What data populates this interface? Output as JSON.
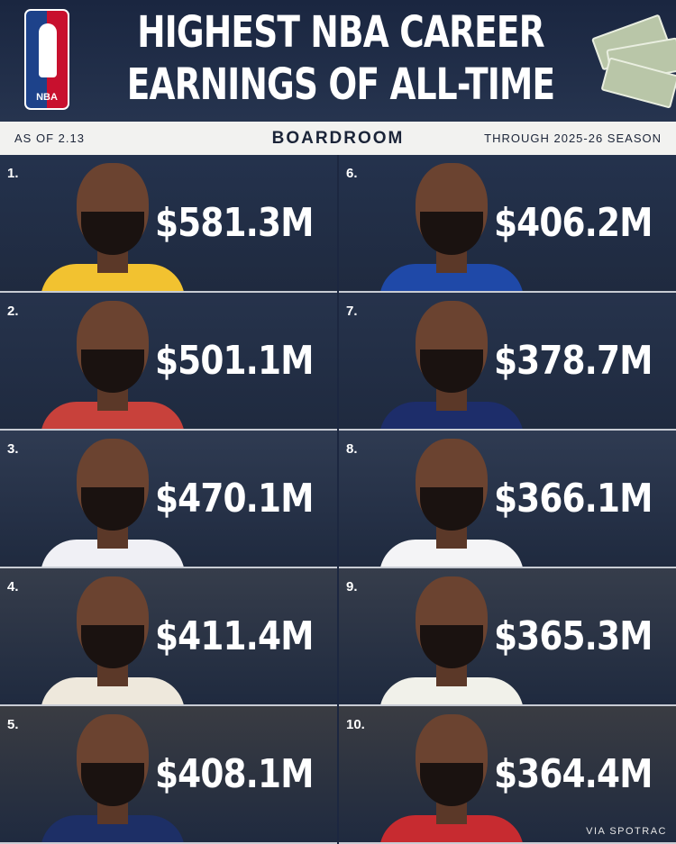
{
  "header": {
    "title_line1": "HIGHEST NBA CAREER",
    "title_line2": "EARNINGS OF ALL-TIME",
    "logo_text": "NBA"
  },
  "subheader": {
    "left": "AS OF 2.13",
    "center": "BOARDROOM",
    "right": "THROUGH 2025-26 SEASON"
  },
  "entries": [
    {
      "rank": "1.",
      "earnings": "$581.3M",
      "jersey": "#f2c230",
      "bg": "#24324d"
    },
    {
      "rank": "2.",
      "earnings": "$501.1M",
      "jersey": "#c8413b",
      "bg": "#26334c"
    },
    {
      "rank": "3.",
      "earnings": "$470.1M",
      "jersey": "#f0f0f5",
      "bg": "#2f3b52"
    },
    {
      "rank": "4.",
      "earnings": "$411.4M",
      "jersey": "#eee8dc",
      "bg": "#363d4b"
    },
    {
      "rank": "5.",
      "earnings": "$408.1M",
      "jersey": "#1d2f66",
      "bg": "#3a3c42"
    },
    {
      "rank": "6.",
      "earnings": "$406.2M",
      "jersey": "#1f49a8",
      "bg": "#24324d"
    },
    {
      "rank": "7.",
      "earnings": "$378.7M",
      "jersey": "#1d2d6a",
      "bg": "#26334c"
    },
    {
      "rank": "8.",
      "earnings": "$366.1M",
      "jersey": "#f4f4f6",
      "bg": "#2f3b52"
    },
    {
      "rank": "9.",
      "earnings": "$365.3M",
      "jersey": "#f1f1ea",
      "bg": "#363d4b"
    },
    {
      "rank": "10.",
      "earnings": "$364.4M",
      "jersey": "#c72b30",
      "bg": "#3a3c42"
    }
  ],
  "footer": {
    "credit": "VIA SPOTRAC"
  }
}
